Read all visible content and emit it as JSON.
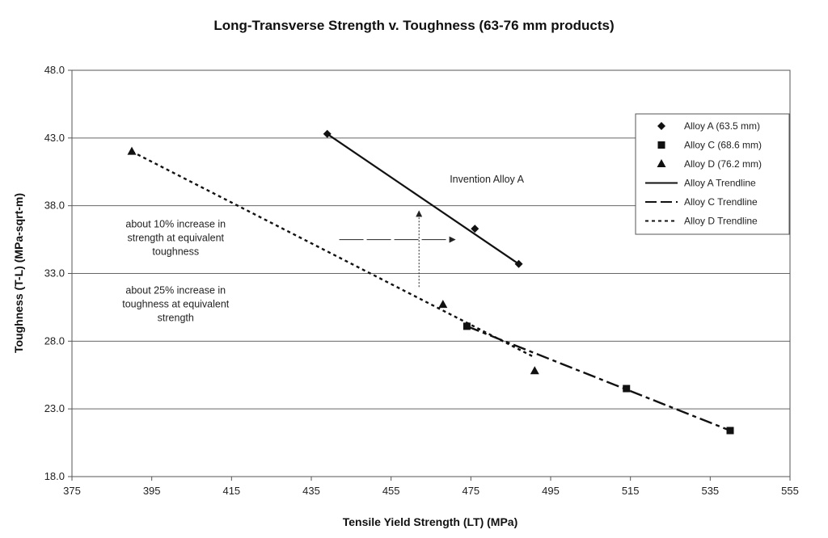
{
  "chart_data": {
    "type": "scatter",
    "title": "Long-Transverse Strength v. Toughness (63-76 mm products)",
    "xlabel": "Tensile Yield Strength (LT) (MPa)",
    "ylabel": "Toughness (T-L) (MPa-sqrt-m)",
    "xlim": [
      375,
      555
    ],
    "ylim": [
      18.0,
      48.0
    ],
    "x_ticks": [
      "375",
      "395",
      "415",
      "435",
      "455",
      "475",
      "495",
      "515",
      "535",
      "555"
    ],
    "y_ticks": [
      "18.0",
      "23.0",
      "28.0",
      "33.0",
      "38.0",
      "43.0",
      "48.0"
    ],
    "grid": "horizontal",
    "legend_position": "top-right",
    "series": [
      {
        "name": "Alloy A (63.5 mm)",
        "marker": "diamond",
        "points": [
          [
            439,
            43.3
          ],
          [
            476,
            36.3
          ],
          [
            487,
            33.7
          ]
        ]
      },
      {
        "name": "Alloy C (68.6 mm)",
        "marker": "square",
        "points": [
          [
            474,
            29.1
          ],
          [
            514,
            24.5
          ],
          [
            540,
            21.4
          ]
        ]
      },
      {
        "name": "Alloy D (76.2 mm)",
        "marker": "triangle",
        "points": [
          [
            390,
            42.0
          ],
          [
            468,
            30.7
          ],
          [
            491,
            25.8
          ]
        ]
      }
    ],
    "trendlines": [
      {
        "name": "Alloy A Trendline",
        "style": "solid",
        "x": [
          439,
          487
        ],
        "y": [
          43.3,
          33.7
        ]
      },
      {
        "name": "Alloy C Trendline",
        "style": "dash-dot",
        "x": [
          474,
          540
        ],
        "y": [
          29.1,
          21.4
        ]
      },
      {
        "name": "Alloy D Trendline",
        "style": "dotted",
        "x": [
          390,
          491
        ],
        "y": [
          42.0,
          26.8
        ]
      }
    ],
    "annotations": [
      {
        "id": "invention",
        "lines": [
          "Invention Alloy A"
        ],
        "x": 479,
        "y": 39.7
      },
      {
        "id": "strength_note",
        "lines": [
          "about 10% increase in",
          "strength at equivalent",
          "toughness"
        ],
        "x": 401,
        "y": 36.4
      },
      {
        "id": "toughness_note",
        "lines": [
          "about 25% increase in",
          "toughness at equivalent",
          "strength"
        ],
        "x": 401,
        "y": 31.5
      }
    ],
    "arrows": [
      {
        "id": "strength_arrow",
        "from": [
          442,
          35.5
        ],
        "to": [
          471,
          35.5
        ]
      },
      {
        "id": "toughness_arrow",
        "from": [
          462,
          32.0
        ],
        "to": [
          462,
          37.6
        ]
      }
    ]
  }
}
